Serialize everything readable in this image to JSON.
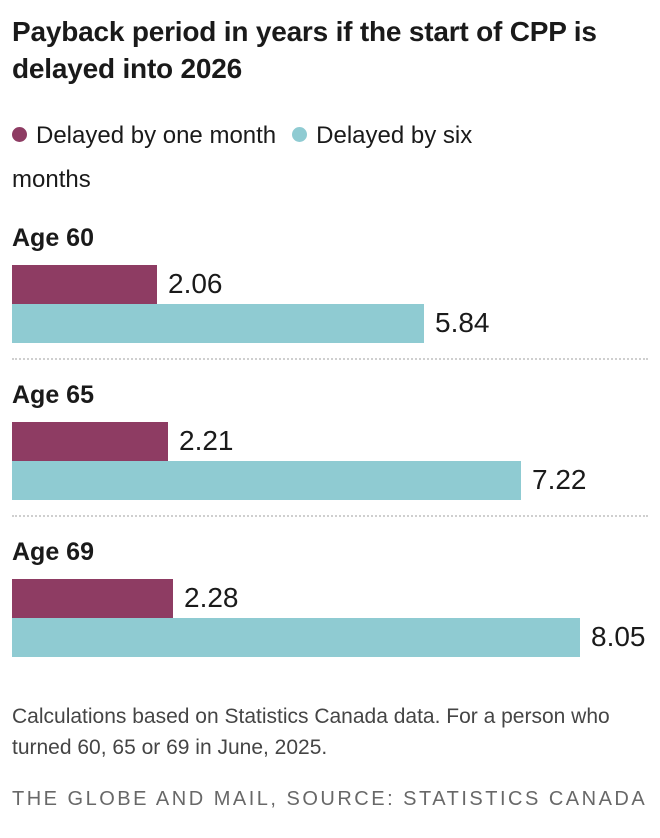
{
  "header": {
    "title": "Payback period in years if the start of CPP is delayed into 2026"
  },
  "legend": [
    {
      "label": "Delayed by one month",
      "color": "#8e3c63"
    },
    {
      "label": "Delayed by six months",
      "color": "#8fcbd2"
    }
  ],
  "chart_data": {
    "type": "bar",
    "orientation": "horizontal",
    "title": "Payback period in years if the start of CPP is delayed into 2026",
    "categories": [
      "Age 60",
      "Age 65",
      "Age 69"
    ],
    "series": [
      {
        "name": "Delayed by one month",
        "color": "#8e3c63",
        "values": [
          2.06,
          2.21,
          2.28
        ],
        "display_values": [
          "2.06",
          "2.21",
          "2.28"
        ]
      },
      {
        "name": "Delayed by six months",
        "color": "#8fcbd2",
        "values": [
          5.84,
          7.22,
          8.05
        ],
        "display_values": [
          "5.84",
          "7.22",
          "8.05"
        ]
      }
    ],
    "value_labels": true,
    "axis_hidden": true,
    "xlim": [
      0,
      8.05
    ],
    "legend_position": "top",
    "grid": false
  },
  "footer": {
    "note": "Calculations based on Statistics Canada data. For a person who turned 60, 65 or 69 in June, 2025.",
    "credit": "THE GLOBE AND MAIL, SOURCE: STATISTICS CANADA"
  }
}
